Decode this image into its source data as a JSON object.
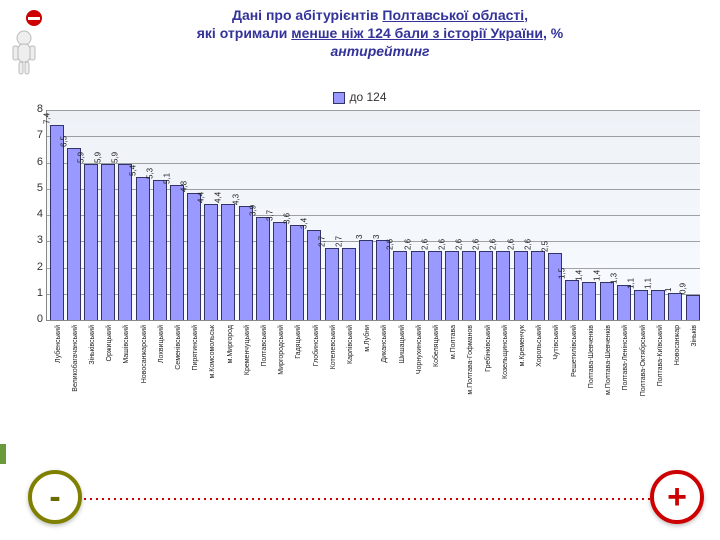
{
  "title": {
    "line1_a": "Дані про абітурієнтів ",
    "line1_b": "Полтавської області",
    "line1_c": ",",
    "line2_a": "які отримали ",
    "line2_b": "менше ніж 124 бали з історії України",
    "line2_c": ", %",
    "line3": "антирейтинг"
  },
  "chart": {
    "legend_label": "до 124",
    "type": "bar",
    "ylim": [
      0,
      8
    ],
    "ytick_step": 1,
    "bar_color": "#9999ff",
    "bar_border": "#333366",
    "background_top": "#eef2f7",
    "grid_color": "#000000",
    "categories": [
      "Лубенський",
      "Великобагачанський",
      "Зіньківський",
      "Оржицький",
      "Машівський",
      "Новосанжарський",
      "Лохвицький",
      "Семенівський",
      "Пирятинський",
      "м.Комсомольськ",
      "м.Миргород",
      "Кременчуцький",
      "Полтавський",
      "Миргородський",
      "Гадяцький",
      "Глобинський",
      "Котелевський",
      "Карлівський",
      "м.Лубни",
      "Диканський",
      "Шишацький",
      "Чорнухинський",
      "Кобеляцький",
      "м.Полтава",
      "м.Полтава-Гофманов",
      "Гребінківський",
      "Козельщинський",
      "м.Кременчук",
      "Хорольський",
      "Чутівський",
      "Решетилівський",
      "Полтава-Шевченків",
      "м.Полтава-Шевченків",
      "Полтава-Ленінський",
      "Полтава-Октябрський",
      "Полтава-Київський",
      "Новосанжар",
      "Зіньків"
    ],
    "values": [
      7.4,
      6.5,
      5.9,
      5.9,
      5.9,
      5.4,
      5.3,
      5.1,
      4.8,
      4.4,
      4.4,
      4.3,
      3.9,
      3.7,
      3.6,
      3.4,
      2.7,
      2.7,
      3.0,
      3.0,
      2.6,
      2.6,
      2.6,
      2.6,
      2.6,
      2.6,
      2.6,
      2.6,
      2.6,
      2.5,
      1.5,
      1.4,
      1.4,
      1.3,
      1.1,
      1.1,
      1.0,
      0.9
    ]
  },
  "footer": {
    "minus": "-",
    "plus": "+"
  },
  "icons": {
    "stop_fill": "#cc0000",
    "person_fill": "#eeeeee"
  }
}
